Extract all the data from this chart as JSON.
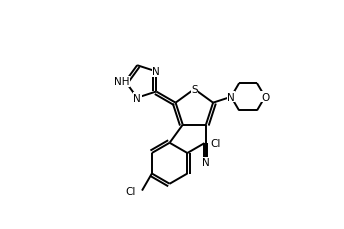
{
  "background_color": "#ffffff",
  "line_color": "#000000",
  "line_width": 1.4,
  "font_size": 7.5,
  "figsize": [
    3.44,
    2.3
  ],
  "dpi": 100,
  "xlim": [
    0.0,
    1.0
  ],
  "ylim": [
    0.08,
    0.95
  ]
}
